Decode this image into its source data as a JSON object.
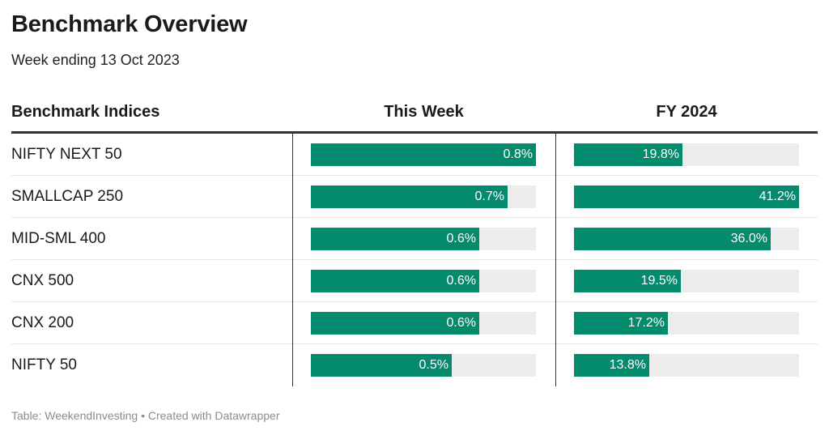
{
  "title": "Benchmark Overview",
  "subtitle": "Week ending 13 Oct 2023",
  "headers": {
    "label": "Benchmark Indices",
    "week": "This Week",
    "fy": "FY 2024"
  },
  "footer": "Table: WeekendInvesting • Created with Datawrapper",
  "colors": {
    "bar": "#048a6c",
    "track": "#ececec"
  },
  "chart_data": {
    "type": "table",
    "title": "Benchmark Overview",
    "subtitle": "Week ending 13 Oct 2023",
    "columns": [
      "Benchmark Indices",
      "This Week",
      "FY 2024"
    ],
    "week_max": 0.8,
    "fy_max": 41.2,
    "rows": [
      {
        "name": "NIFTY NEXT 50",
        "week": 0.8,
        "week_label": "0.8%",
        "fy": 19.8,
        "fy_label": "19.8%"
      },
      {
        "name": "SMALLCAP 250",
        "week": 0.7,
        "week_label": "0.7%",
        "fy": 41.2,
        "fy_label": "41.2%"
      },
      {
        "name": "MID-SML 400",
        "week": 0.6,
        "week_label": "0.6%",
        "fy": 36.0,
        "fy_label": "36.0%"
      },
      {
        "name": "CNX 500",
        "week": 0.6,
        "week_label": "0.6%",
        "fy": 19.5,
        "fy_label": "19.5%"
      },
      {
        "name": "CNX 200",
        "week": 0.6,
        "week_label": "0.6%",
        "fy": 17.2,
        "fy_label": "17.2%"
      },
      {
        "name": "NIFTY 50",
        "week": 0.5,
        "week_label": "0.5%",
        "fy": 13.8,
        "fy_label": "13.8%"
      }
    ]
  }
}
